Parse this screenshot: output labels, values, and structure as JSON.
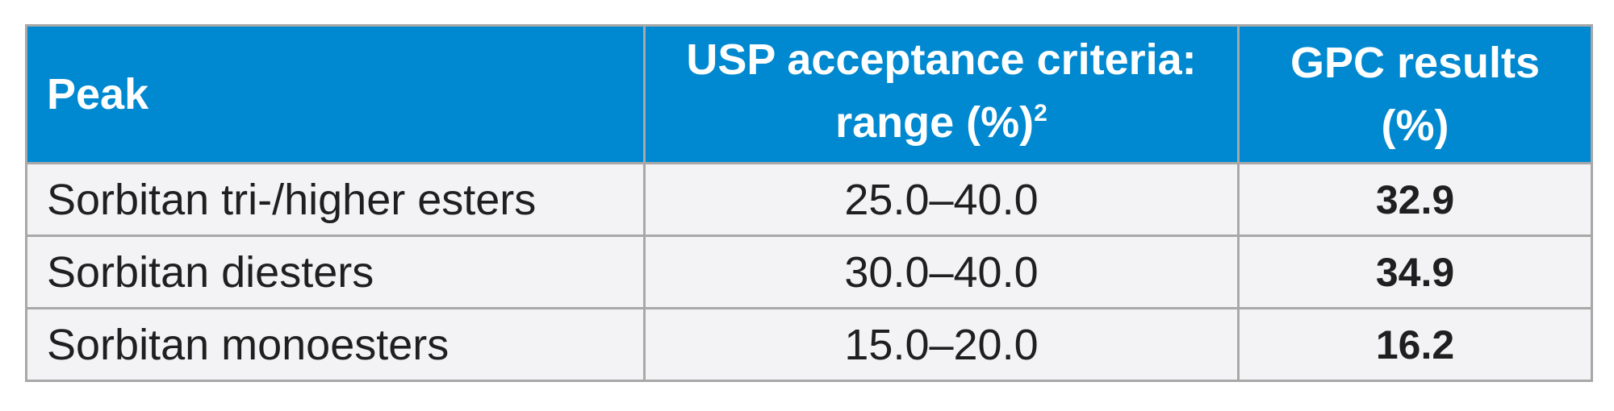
{
  "table": {
    "header": {
      "peak": "Peak",
      "usp_line1": "USP acceptance criteria:",
      "usp_line2": "range (%)",
      "usp_superscript": "2",
      "gpc_line1": "GPC results",
      "gpc_line2": "(%)"
    },
    "rows": [
      {
        "peak": "Sorbitan tri-/higher esters",
        "range": "25.0–40.0",
        "result": "32.9"
      },
      {
        "peak": "Sorbitan diesters",
        "range": "30.0–40.0",
        "result": "34.9"
      },
      {
        "peak": "Sorbitan monoesters",
        "range": "15.0–20.0",
        "result": "16.2"
      }
    ]
  },
  "colors": {
    "header_background": "#0089d0",
    "header_text": "#ffffff",
    "row_background": "#f3f3f5",
    "border": "#a8a8a8",
    "body_text": "#1f1f1f"
  }
}
